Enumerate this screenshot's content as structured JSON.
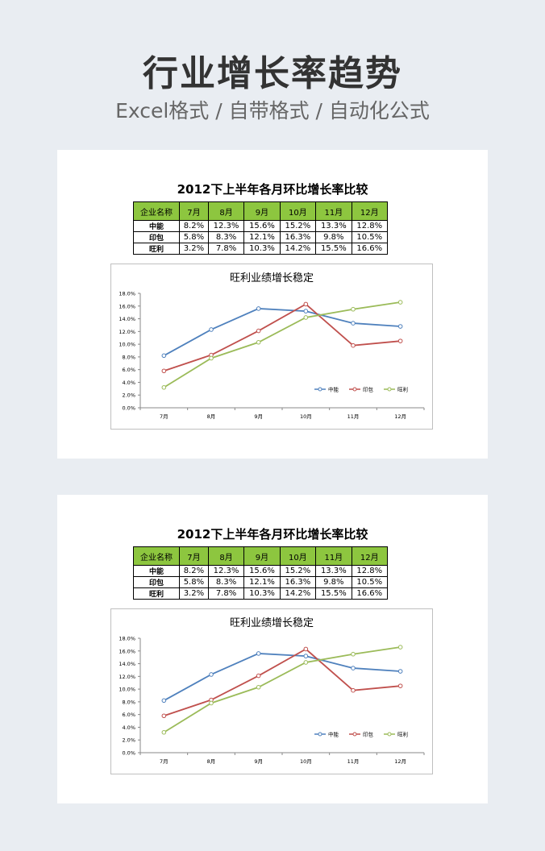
{
  "header": {
    "title": "行业增长率趋势",
    "subtitle": "Excel格式 / 自带格式 / 自动化公式"
  },
  "sheet": {
    "title": "2012下上半年各月环比增长率比较",
    "table": {
      "header": [
        "企业名称",
        "7月",
        "8月",
        "9月",
        "10月",
        "11月",
        "12月"
      ],
      "rows": [
        {
          "name": "中能",
          "cells": [
            "8.2%",
            "12.3%",
            "15.6%",
            "15.2%",
            "13.3%",
            "12.8%"
          ]
        },
        {
          "name": "印包",
          "cells": [
            "5.8%",
            "8.3%",
            "12.1%",
            "16.3%",
            "9.8%",
            "10.5%"
          ]
        },
        {
          "name": "旺利",
          "cells": [
            "3.2%",
            "7.8%",
            "10.3%",
            "14.2%",
            "15.5%",
            "16.6%"
          ]
        }
      ]
    }
  },
  "chart_data": {
    "type": "line",
    "title": "旺利业绩增长稳定",
    "categories": [
      "7月",
      "8月",
      "9月",
      "10月",
      "11月",
      "12月"
    ],
    "series": [
      {
        "name": "中能",
        "color": "#4f81bd",
        "values": [
          8.2,
          12.3,
          15.6,
          15.2,
          13.3,
          12.8
        ]
      },
      {
        "name": "印包",
        "color": "#c0504d",
        "values": [
          5.8,
          8.3,
          12.1,
          16.3,
          9.8,
          10.5
        ]
      },
      {
        "name": "旺利",
        "color": "#9bbb59",
        "values": [
          3.2,
          7.8,
          10.3,
          14.2,
          15.5,
          16.6
        ]
      }
    ],
    "ylim": [
      0,
      18
    ],
    "yticks": [
      "0.0%",
      "2.0%",
      "4.0%",
      "6.0%",
      "8.0%",
      "10.0%",
      "12.0%",
      "14.0%",
      "16.0%",
      "18.0%"
    ],
    "legend_position": "bottom-right-inside",
    "grid": false
  },
  "colors": {
    "page_background": "#e9edf2",
    "table_header": "#8dc63f"
  }
}
